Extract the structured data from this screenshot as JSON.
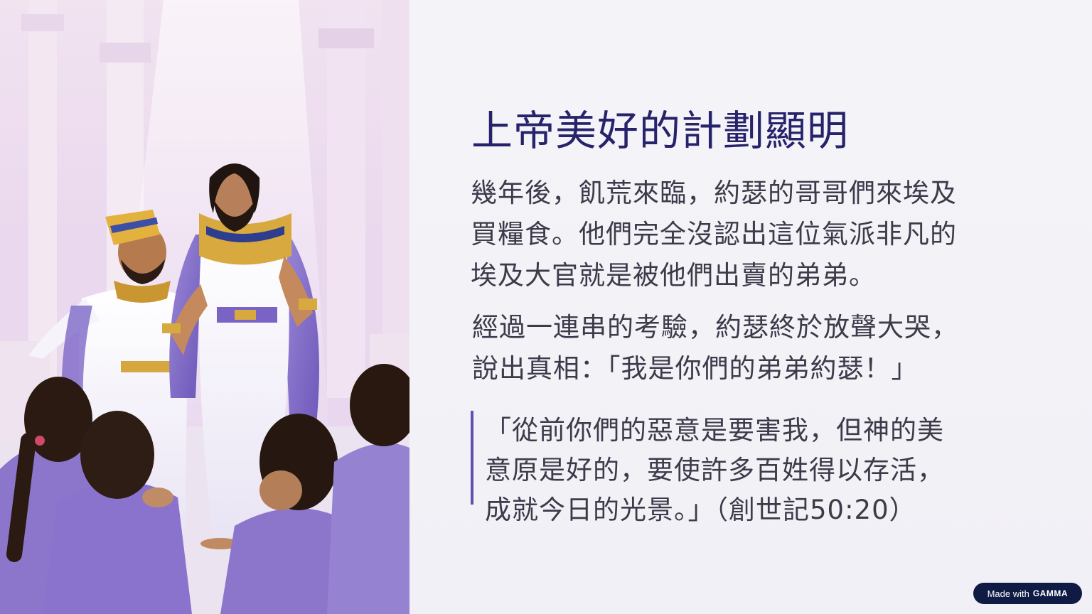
{
  "slide": {
    "title": "上帝美好的計劃顯明",
    "paragraph_1_lines": [
      "幾年後，飢荒來臨，約瑟的哥哥們來埃及",
      "買糧食。他們完全沒認出這位氣派非凡的",
      "埃及大官就是被他們出賣的弟弟。"
    ],
    "paragraph_2_lines": [
      "經過一連串的考驗，約瑟終於放聲大哭，",
      "說出真相：「我是你們的弟弟約瑟！」"
    ],
    "quote_lines": [
      "「從前你們的惡意是要害我，但神的美",
      "意原是好的，要使許多百姓得以存活，",
      "成就今日的光景。」（創世記50:20）"
    ]
  },
  "badge": {
    "prefix": "Made with",
    "brand": "GAMMA"
  },
  "colors": {
    "title": "#26236b",
    "body_text": "#3d3a4a",
    "quote_bar": "#5d52b4",
    "badge_bg": "#0f1a45"
  }
}
